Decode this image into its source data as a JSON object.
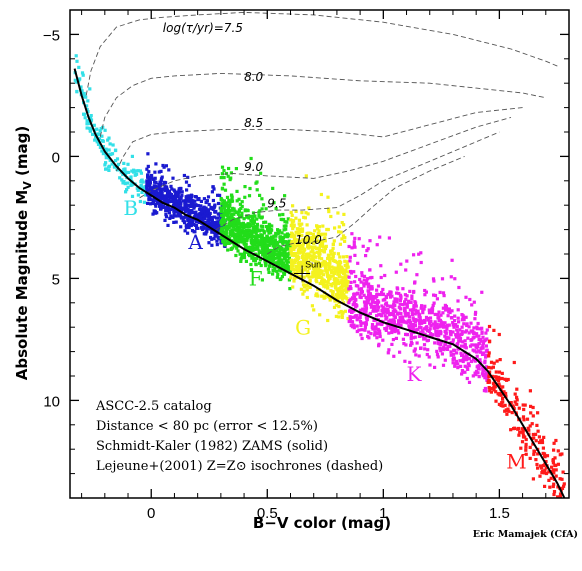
{
  "chart_data": {
    "type": "scatter",
    "title": "",
    "xlabel": "B−V color (mag)",
    "ylabel": "Absolute Magnitude M",
    "ylabel_subscript": "V",
    "ylabel_unit": " (mag)",
    "xlim": [
      -0.35,
      1.8
    ],
    "ylim": [
      14,
      -6
    ],
    "y_inverted": true,
    "grid": false,
    "x_ticks": [
      0,
      0.5,
      1,
      1.5
    ],
    "x_tick_labels": [
      "0",
      "0.5",
      "1",
      "1.5"
    ],
    "y_ticks": [
      -5,
      0,
      5,
      10
    ],
    "y_tick_labels": [
      "−5",
      "0",
      "5",
      "10"
    ],
    "legend_text": [
      "ASCC-2.5 catalog",
      "Distance < 80 pc (error < 12.5%)",
      "Schmidt-Kaler (1982) ZAMS (solid)",
      "Lejeune+(2001) Z=Z⊙ isochrones (dashed)"
    ],
    "legend_placement": "bottom-left",
    "credit": "Eric Mamajek (CfA)",
    "zams": {
      "name": "Schmidt-Kaler (1982) ZAMS",
      "style": "solid",
      "x": [
        -0.33,
        -0.3,
        -0.27,
        -0.24,
        -0.2,
        -0.15,
        -0.1,
        -0.05,
        0.0,
        0.05,
        0.1,
        0.15,
        0.2,
        0.3,
        0.4,
        0.5,
        0.6,
        0.7,
        0.8,
        0.9,
        1.0,
        1.1,
        1.2,
        1.3,
        1.4,
        1.45,
        1.5,
        1.55,
        1.6,
        1.65,
        1.7,
        1.75,
        1.78
      ],
      "y": [
        -3.6,
        -2.5,
        -1.6,
        -0.9,
        -0.2,
        0.4,
        0.9,
        1.3,
        1.6,
        1.9,
        2.1,
        2.4,
        2.6,
        3.2,
        3.8,
        4.3,
        4.8,
        5.3,
        5.9,
        6.4,
        6.8,
        7.1,
        7.4,
        7.7,
        8.3,
        8.8,
        9.5,
        10.2,
        11.0,
        11.8,
        12.6,
        13.4,
        14.0
      ]
    },
    "isochrones": {
      "style": "dashed",
      "labels": [
        {
          "text": "log(τ/yr)=7.5",
          "x": 0.05,
          "y": -5.1
        },
        {
          "text": "8.0",
          "x": 0.4,
          "y": -3.1
        },
        {
          "text": "8.5",
          "x": 0.4,
          "y": -1.2
        },
        {
          "text": "9.0",
          "x": 0.4,
          "y": 0.6
        },
        {
          "text": "9.5",
          "x": 0.5,
          "y": 2.1
        },
        {
          "text": "10.0",
          "x": 0.62,
          "y": 3.6
        }
      ],
      "curves": [
        {
          "age": "7.5",
          "x": [
            -0.28,
            -0.26,
            -0.22,
            -0.15,
            -0.05,
            0.05,
            0.2,
            0.4,
            0.7,
            1.0,
            1.3,
            1.55,
            1.7,
            1.75
          ],
          "y": [
            -2.5,
            -3.5,
            -4.5,
            -5.3,
            -5.6,
            -5.7,
            -5.8,
            -5.9,
            -5.8,
            -5.5,
            -5.0,
            -4.4,
            -3.9,
            -3.7
          ]
        },
        {
          "age": "8.0",
          "x": [
            -0.22,
            -0.2,
            -0.15,
            -0.08,
            0.0,
            0.1,
            0.3,
            0.6,
            0.9,
            1.2,
            1.4,
            1.6,
            1.7
          ],
          "y": [
            -0.8,
            -1.6,
            -2.4,
            -2.9,
            -3.2,
            -3.3,
            -3.4,
            -3.3,
            -3.1,
            -3.0,
            -2.8,
            -2.6,
            -2.4
          ]
        },
        {
          "age": "8.5",
          "x": [
            -0.15,
            -0.12,
            -0.08,
            0.0,
            0.1,
            0.3,
            0.6,
            0.8,
            1.0,
            1.2,
            1.4,
            1.6
          ],
          "y": [
            0.6,
            0.0,
            -0.6,
            -0.9,
            -1.0,
            -1.1,
            -1.1,
            -1.0,
            -0.8,
            -1.3,
            -1.8,
            -2.0
          ]
        },
        {
          "age": "9.0",
          "x": [
            -0.05,
            0.0,
            0.1,
            0.2,
            0.35,
            0.5,
            0.7,
            0.85,
            1.0,
            1.2,
            1.4,
            1.55
          ],
          "y": [
            1.7,
            1.4,
            1.0,
            0.8,
            0.7,
            0.8,
            0.9,
            0.6,
            0.2,
            -0.5,
            -1.2,
            -1.6
          ]
        },
        {
          "age": "9.5",
          "x": [
            0.28,
            0.35,
            0.45,
            0.55,
            0.65,
            0.8,
            0.9,
            1.0,
            1.2,
            1.4,
            1.5
          ],
          "y": [
            3.0,
            2.6,
            2.3,
            2.2,
            2.2,
            2.1,
            1.6,
            1.0,
            0.2,
            -0.6,
            -1.0
          ]
        },
        {
          "age": "10.0",
          "x": [
            0.5,
            0.55,
            0.62,
            0.7,
            0.8,
            0.88,
            0.95,
            1.05,
            1.2,
            1.35
          ],
          "y": [
            4.0,
            3.7,
            3.55,
            3.5,
            3.3,
            2.7,
            2.1,
            1.3,
            0.6,
            0.0
          ]
        }
      ]
    },
    "sun": {
      "label": "Sun",
      "x": 0.65,
      "y": 4.8
    },
    "series": [
      {
        "name": "B",
        "color": "#33e0e8",
        "label_pos": {
          "x": -0.12,
          "y": 2.4
        },
        "x_range": [
          -0.33,
          -0.02
        ],
        "y_center_offset": 0.0,
        "y_spread": 0.7,
        "count": 170
      },
      {
        "name": "A",
        "color": "#1a1ad0",
        "label_pos": {
          "x": 0.16,
          "y": 3.8
        },
        "x_range": [
          -0.02,
          0.32
        ],
        "y_center_offset": -0.2,
        "y_spread": 0.8,
        "count": 650
      },
      {
        "name": "F",
        "color": "#22dd1a",
        "label_pos": {
          "x": 0.42,
          "y": 5.3
        },
        "x_range": [
          0.3,
          0.6
        ],
        "y_center_offset": -0.6,
        "y_spread": 1.2,
        "count": 780
      },
      {
        "name": "G",
        "color": "#f4f21e",
        "label_pos": {
          "x": 0.62,
          "y": 7.3
        },
        "x_range": [
          0.6,
          0.85
        ],
        "y_center_offset": -0.9,
        "y_spread": 1.6,
        "count": 620
      },
      {
        "name": "K",
        "color": "#ee22ee",
        "label_pos": {
          "x": 1.1,
          "y": 9.2
        },
        "x_range": [
          0.85,
          1.45
        ],
        "y_center_offset": -0.3,
        "y_spread": 1.5,
        "count": 880
      },
      {
        "name": "M",
        "color": "#ff1a1a",
        "label_pos": {
          "x": 1.53,
          "y": 12.8
        },
        "x_range": [
          1.45,
          1.78
        ],
        "y_center_offset": 0.0,
        "y_spread": 1.2,
        "count": 230
      }
    ]
  }
}
